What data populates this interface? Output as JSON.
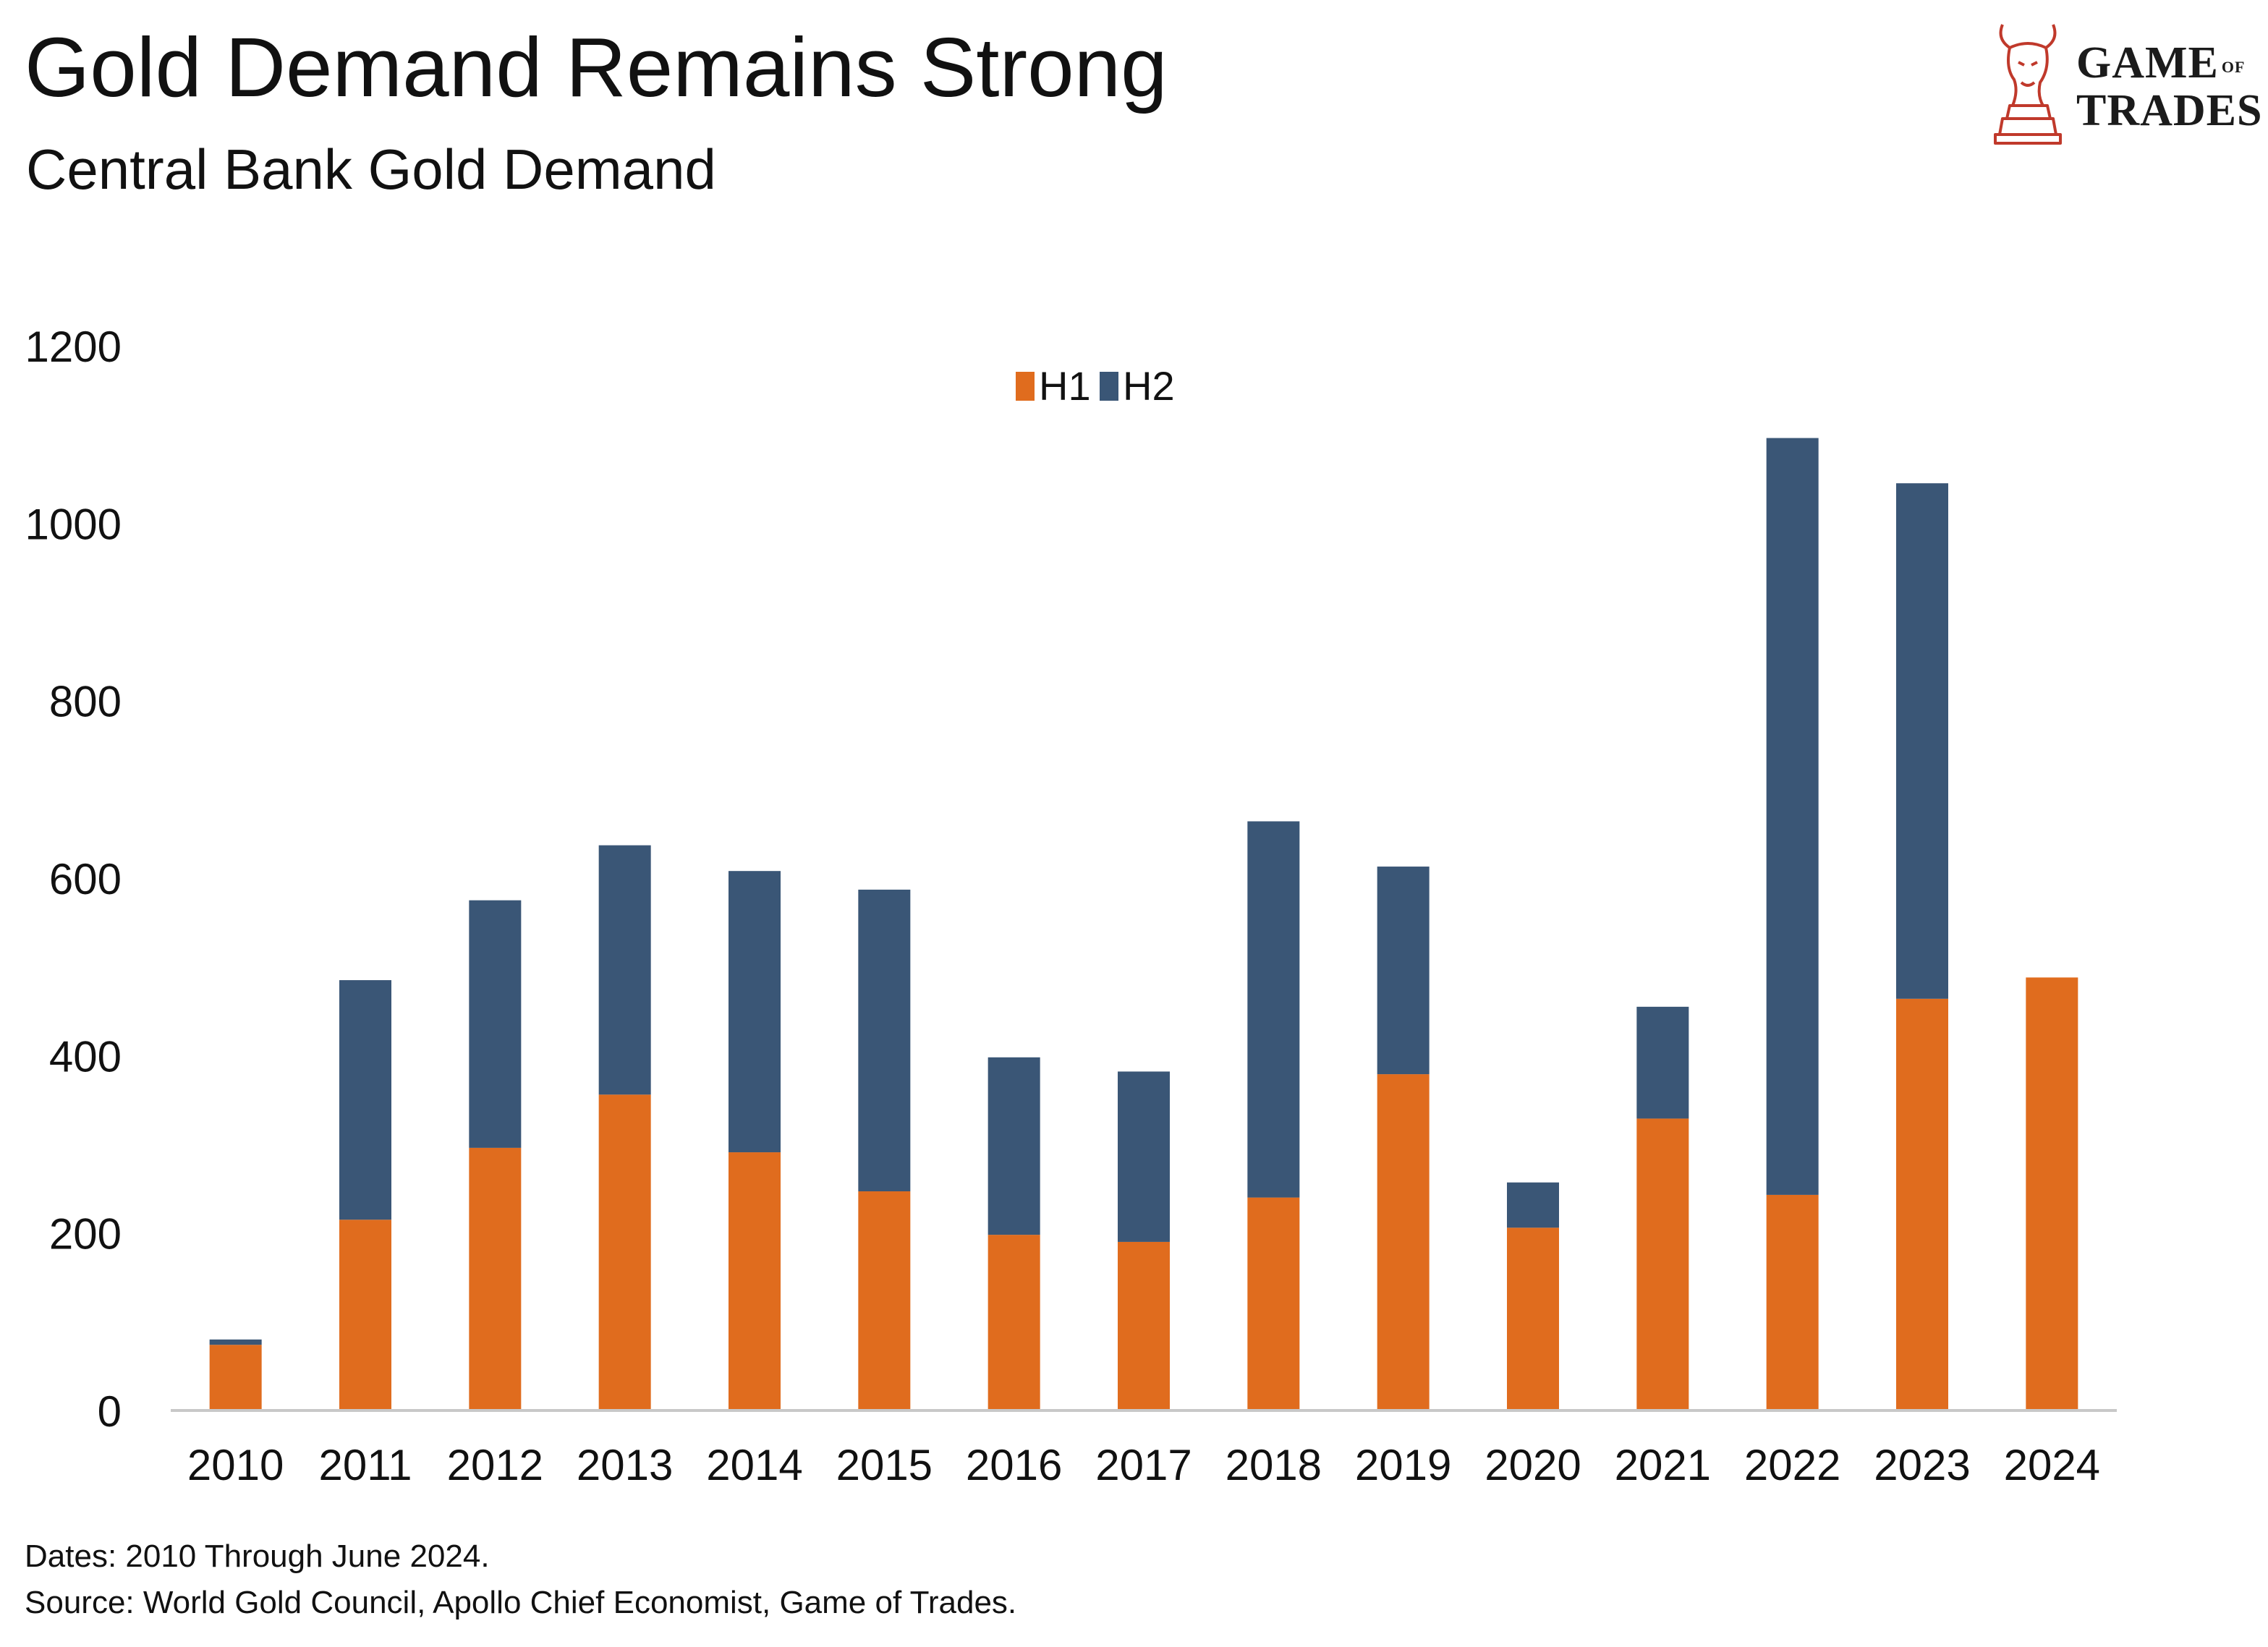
{
  "header": {
    "title": "Gold Demand Remains Strong",
    "subtitle": "Central Bank Gold Demand"
  },
  "logo": {
    "icon": "bull-chess-knight-icon",
    "line1": "GAME",
    "of": "OF",
    "line2": "TRADES",
    "color": "#c0392b"
  },
  "footer": {
    "dates_note": "Dates: 2010 Through June 2024.",
    "source_note": "Source: World Gold Council, Apollo Chief Economist, Game of Trades."
  },
  "chart_data": {
    "type": "bar",
    "stacked": true,
    "categories": [
      "2010",
      "2011",
      "2012",
      "2013",
      "2014",
      "2015",
      "2016",
      "2017",
      "2018",
      "2019",
      "2020",
      "2021",
      "2022",
      "2023",
      "2024"
    ],
    "series": [
      {
        "name": "H1",
        "color": "#e06c1e",
        "values": [
          74,
          215,
          296,
          356,
          291,
          247,
          198,
          190,
          240,
          379,
          206,
          329,
          243,
          464,
          488
        ]
      },
      {
        "name": "H2",
        "color": "#3a5676",
        "values": [
          6,
          270,
          279,
          281,
          317,
          340,
          200,
          192,
          424,
          234,
          51,
          126,
          853,
          581,
          0
        ]
      }
    ],
    "ylim": [
      0,
      1200
    ],
    "yticks": [
      0,
      200,
      400,
      600,
      800,
      1000,
      1200
    ],
    "grid": false,
    "legend": "top-center",
    "xlabel": "",
    "ylabel": ""
  }
}
